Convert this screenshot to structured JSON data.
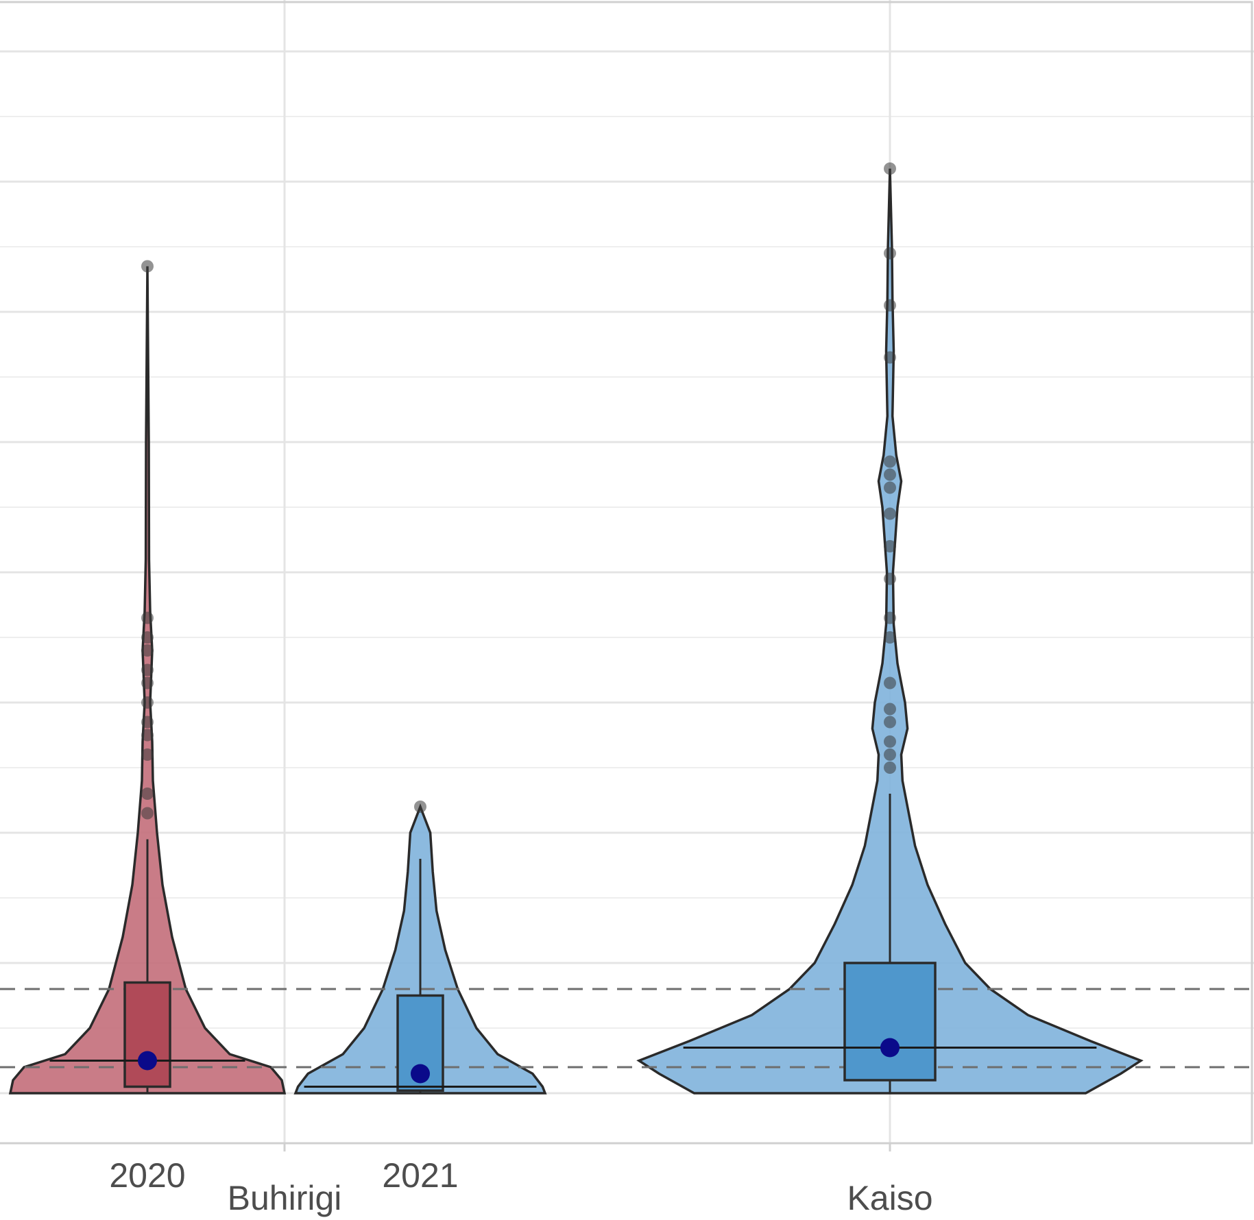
{
  "chart_data": {
    "type": "violin",
    "title": "",
    "xlabel": "",
    "ylabel": "",
    "ylim": [
      0,
      8.5
    ],
    "grid": true,
    "legend": "none",
    "groups": [
      {
        "label": "Buhirigi",
        "categories": [
          "2020",
          "2021"
        ]
      },
      {
        "label": "Kaiso",
        "categories": [
          ""
        ]
      }
    ],
    "series": [
      {
        "site": "Buhirigi",
        "year": "2020",
        "color": "#c36e7a",
        "box_color": "#b04a58",
        "min": 0.0,
        "q1": 0.05,
        "median": 0.25,
        "q3": 0.85,
        "max": 1.95,
        "mean": 0.25,
        "max_point": 6.35,
        "outliers": [
          2.15,
          2.3,
          2.6,
          2.75,
          2.85,
          3.0,
          3.15,
          3.25,
          3.4,
          3.5,
          3.65,
          6.35
        ],
        "density": [
          [
            0.0,
            1.0
          ],
          [
            0.1,
            0.98
          ],
          [
            0.2,
            0.9
          ],
          [
            0.3,
            0.6
          ],
          [
            0.5,
            0.42
          ],
          [
            0.8,
            0.28
          ],
          [
            1.2,
            0.18
          ],
          [
            1.6,
            0.11
          ],
          [
            2.0,
            0.07
          ],
          [
            2.4,
            0.04
          ],
          [
            2.7,
            0.035
          ],
          [
            3.0,
            0.02
          ],
          [
            3.4,
            0.035
          ],
          [
            3.7,
            0.02
          ],
          [
            4.1,
            0.012
          ],
          [
            5.0,
            0.01
          ],
          [
            6.35,
            0.0
          ]
        ]
      },
      {
        "site": "Buhirigi",
        "year": "2021",
        "color": "#7fb2dc",
        "box_color": "#4f97cc",
        "min": 0.0,
        "q1": 0.02,
        "median": 0.05,
        "q3": 0.75,
        "max": 1.8,
        "mean": 0.15,
        "max_point": 2.2,
        "outliers": [
          2.2
        ],
        "density": [
          [
            0.0,
            1.0
          ],
          [
            0.05,
            0.98
          ],
          [
            0.15,
            0.9
          ],
          [
            0.3,
            0.62
          ],
          [
            0.5,
            0.45
          ],
          [
            0.8,
            0.3
          ],
          [
            1.1,
            0.2
          ],
          [
            1.4,
            0.13
          ],
          [
            1.7,
            0.1
          ],
          [
            2.0,
            0.08
          ],
          [
            2.2,
            0.0
          ]
        ]
      },
      {
        "site": "Kaiso",
        "year": "",
        "color": "#7fb2dc",
        "box_color": "#4f97cc",
        "min": 0.0,
        "q1": 0.1,
        "median": 0.35,
        "q3": 1.0,
        "max": 2.3,
        "mean": 0.35,
        "max_point": 7.1,
        "outliers": [
          2.5,
          2.6,
          2.7,
          2.85,
          2.95,
          3.15,
          3.5,
          3.65,
          3.95,
          4.2,
          4.45,
          4.65,
          4.75,
          4.85,
          5.65,
          6.05,
          6.45,
          7.1
        ],
        "density": [
          [
            0.0,
            0.78
          ],
          [
            0.15,
            0.92
          ],
          [
            0.25,
            1.0
          ],
          [
            0.4,
            0.8
          ],
          [
            0.6,
            0.55
          ],
          [
            0.8,
            0.4
          ],
          [
            1.0,
            0.3
          ],
          [
            1.3,
            0.22
          ],
          [
            1.6,
            0.15
          ],
          [
            1.9,
            0.1
          ],
          [
            2.2,
            0.07
          ],
          [
            2.4,
            0.05
          ],
          [
            2.6,
            0.045
          ],
          [
            2.8,
            0.07
          ],
          [
            3.0,
            0.06
          ],
          [
            3.3,
            0.03
          ],
          [
            3.6,
            0.015
          ],
          [
            4.0,
            0.012
          ],
          [
            4.5,
            0.03
          ],
          [
            4.7,
            0.045
          ],
          [
            4.9,
            0.025
          ],
          [
            5.2,
            0.01
          ],
          [
            5.7,
            0.015
          ],
          [
            6.1,
            0.01
          ],
          [
            6.5,
            0.008
          ],
          [
            7.1,
            0.0
          ]
        ]
      }
    ],
    "reference_lines": [
      0.2,
      0.8
    ]
  }
}
